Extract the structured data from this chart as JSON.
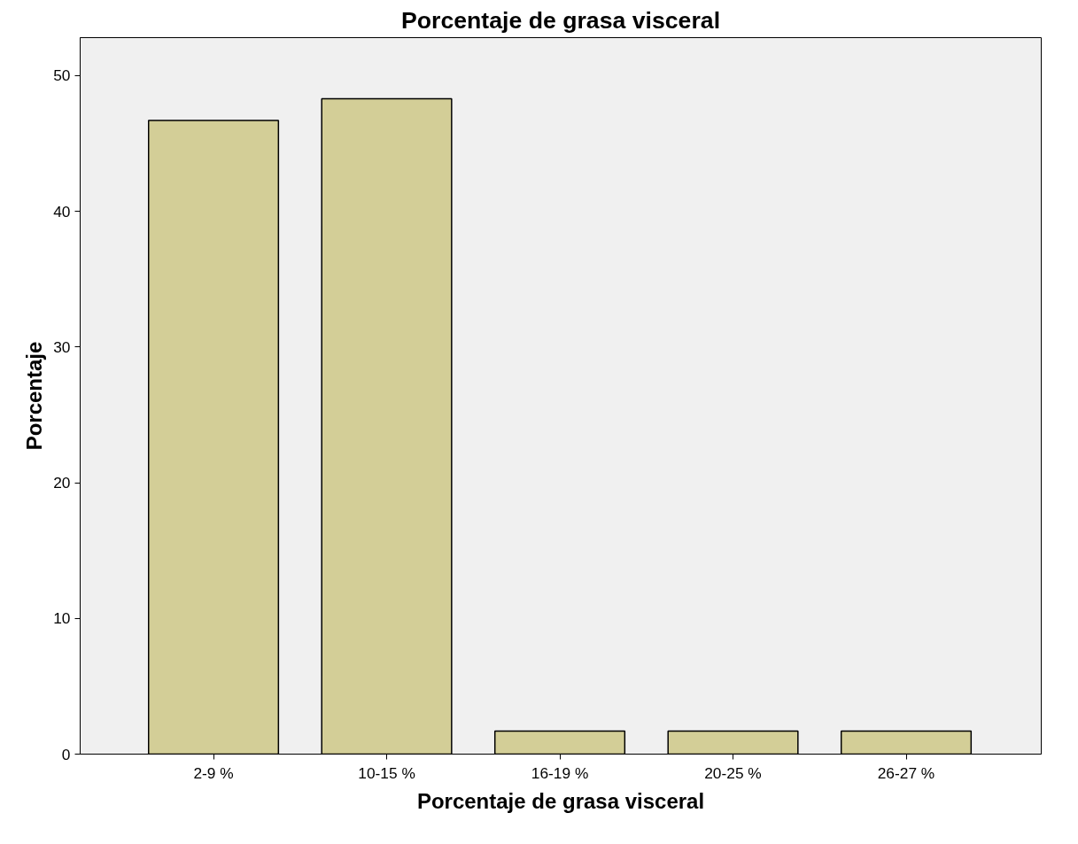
{
  "chart_data": {
    "type": "bar",
    "title": "Porcentaje de grasa visceral",
    "xlabel": "Porcentaje de grasa visceral",
    "ylabel": "Porcentaje",
    "categories": [
      "2-9 %",
      "10-15 %",
      "16-19 %",
      "20-25 %",
      "26-27 %"
    ],
    "values": [
      46.7,
      48.3,
      1.7,
      1.7,
      1.7
    ],
    "color": "#d3ce97",
    "ylim": [
      0,
      52.8
    ],
    "yticks": [
      0,
      10,
      20,
      30,
      40,
      50
    ],
    "grid": false
  }
}
